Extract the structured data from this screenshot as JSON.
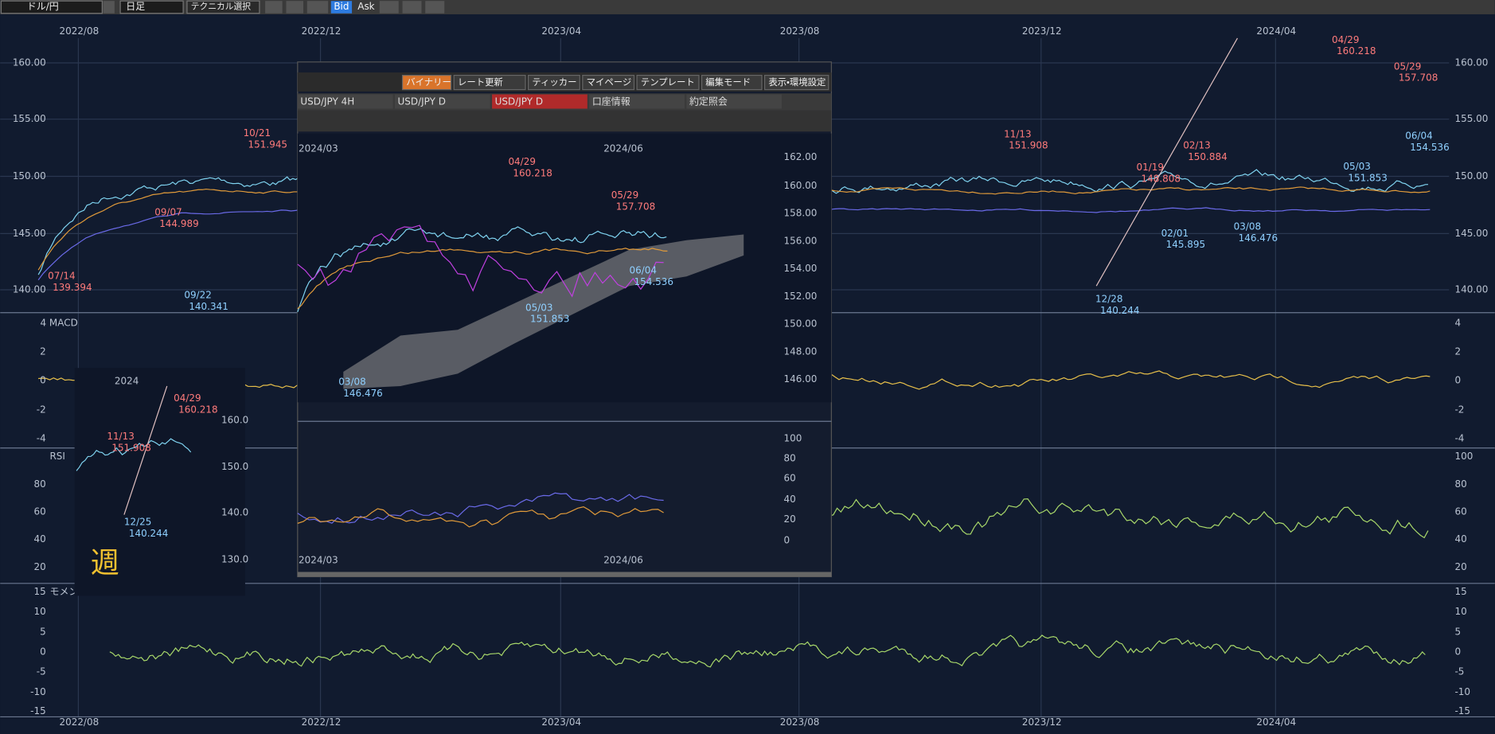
{
  "toolbar": {
    "symbol": "ドル/円",
    "period": "日足",
    "technical": "テクニカル選択",
    "bid": "Bid",
    "ask": "Ask"
  },
  "main_chart": {
    "x_labels": [
      "2022/08",
      "2022/12",
      "2023/04",
      "2023/08",
      "2023/12",
      "2024/04"
    ],
    "price_axis": [
      "160.00",
      "155.00",
      "150.00",
      "145.00",
      "140.00"
    ],
    "annotations": [
      {
        "date": "07/14",
        "price": "139.394",
        "color": "#ff7b7b"
      },
      {
        "date": "09/07",
        "price": "144.989",
        "color": "#ff7b7b"
      },
      {
        "date": "09/22",
        "price": "140.341",
        "color": "#8fd0ff"
      },
      {
        "date": "10/21",
        "price": "151.945",
        "color": "#ff7b7b"
      },
      {
        "date": "11/13",
        "price": "151.908",
        "color": "#ff7b7b"
      },
      {
        "date": "12/28",
        "price": "140.244",
        "color": "#8fd0ff"
      },
      {
        "date": "01/19",
        "price": "148.808",
        "color": "#ff7b7b"
      },
      {
        "date": "02/01",
        "price": "145.895",
        "color": "#8fd0ff"
      },
      {
        "date": "02/13",
        "price": "150.884",
        "color": "#ff7b7b"
      },
      {
        "date": "03/08",
        "price": "146.476",
        "color": "#8fd0ff"
      },
      {
        "date": "04/29",
        "price": "160.218",
        "color": "#ff7b7b"
      },
      {
        "date": "05/29",
        "price": "157.708",
        "color": "#ff7b7b"
      },
      {
        "date": "05/03",
        "price": "151.853",
        "color": "#8fd0ff"
      },
      {
        "date": "06/04",
        "price": "154.536",
        "color": "#8fd0ff"
      }
    ],
    "macd": {
      "title": "4 MACD",
      "axis": [
        "4",
        "2",
        "0",
        "-2",
        "-4"
      ]
    },
    "rsi": {
      "title": "RSI",
      "axis": [
        "100",
        "80",
        "60",
        "40",
        "20"
      ]
    },
    "momentum": {
      "title": "モメンタム",
      "axis": [
        "15",
        "10",
        "5",
        "0",
        "-5",
        "-10",
        "-15"
      ]
    }
  },
  "inset_window": {
    "menu": [
      "バイナリー",
      "レート更新",
      "ティッカー",
      "マイページ",
      "テンプレート",
      "編集モード",
      "表示・環境設定"
    ],
    "tabs": [
      "USD/JPY 4H",
      "USD/JPY D",
      "USD/JPY D",
      "口座情報",
      "約定照会"
    ],
    "x_labels": [
      "2024/03",
      "2024/06"
    ],
    "price_axis": [
      "162.00",
      "160.00",
      "158.00",
      "156.00",
      "154.00",
      "152.00",
      "150.00",
      "148.00",
      "146.00"
    ],
    "annotations": [
      {
        "date": "04/29",
        "price": "160.218",
        "color": "#ff7b7b"
      },
      {
        "date": "05/29",
        "price": "157.708",
        "color": "#ff7b7b"
      },
      {
        "date": "06/04",
        "price": "154.536",
        "color": "#8fd0ff"
      },
      {
        "date": "05/03",
        "price": "151.853",
        "color": "#8fd0ff"
      },
      {
        "date": "03/08",
        "price": "146.476",
        "color": "#8fd0ff"
      }
    ],
    "indicator_axis": [
      "100",
      "80",
      "60",
      "40",
      "20",
      "0"
    ]
  },
  "weekly_inset": {
    "x_label": "2024",
    "price_axis": [
      "160.0",
      "150.0",
      "140.0",
      "130.0"
    ],
    "annotations": [
      {
        "date": "11/13",
        "price": "151.908",
        "color": "#ff7b7b"
      },
      {
        "date": "04/29",
        "price": "160.218",
        "color": "#ff7b7b"
      },
      {
        "date": "12/25",
        "price": "140.244",
        "color": "#8fd0ff"
      }
    ],
    "note": "週"
  }
}
